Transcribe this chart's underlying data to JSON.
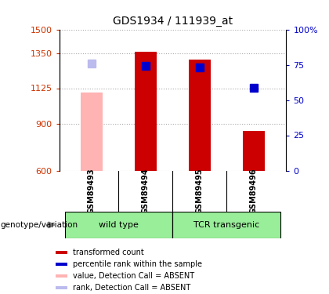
{
  "title": "GDS1934 / 111939_at",
  "samples": [
    "GSM89493",
    "GSM89494",
    "GSM89495",
    "GSM89496"
  ],
  "bar_values": [
    1100,
    1360,
    1310,
    855
  ],
  "bar_colors": [
    "#ffb3b3",
    "#cc0000",
    "#cc0000",
    "#cc0000"
  ],
  "rank_values": [
    1285,
    1270,
    1260,
    1130
  ],
  "rank_colors": [
    "#bbbbee",
    "#0000cc",
    "#0000cc",
    "#0000cc"
  ],
  "absent_flags": [
    true,
    false,
    false,
    false
  ],
  "ylim_left": [
    600,
    1500
  ],
  "ylim_right": [
    0,
    100
  ],
  "yticks_left": [
    600,
    900,
    1125,
    1350,
    1500
  ],
  "ytick_labels_left": [
    "600",
    "900",
    "1125",
    "1350",
    "1500"
  ],
  "yticks_right": [
    0,
    25,
    50,
    75,
    100
  ],
  "ytick_labels_right": [
    "0",
    "25",
    "50",
    "75",
    "100%"
  ],
  "groups": [
    {
      "label": "wild type",
      "indices": [
        0,
        1
      ],
      "color": "#99ee99"
    },
    {
      "label": "TCR transgenic",
      "indices": [
        2,
        3
      ],
      "color": "#99ee99"
    }
  ],
  "group_label": "genotype/variation",
  "legend_items": [
    {
      "label": "transformed count",
      "color": "#cc0000"
    },
    {
      "label": "percentile rank within the sample",
      "color": "#0000cc"
    },
    {
      "label": "value, Detection Call = ABSENT",
      "color": "#ffb3b3"
    },
    {
      "label": "rank, Detection Call = ABSENT",
      "color": "#bbbbee"
    }
  ],
  "bar_width": 0.4,
  "rank_marker_size": 7,
  "grid_color": "#aaaaaa",
  "bg_color": "#ffffff",
  "sample_box_color": "#d0d0d0",
  "arrow_color": "#888888"
}
